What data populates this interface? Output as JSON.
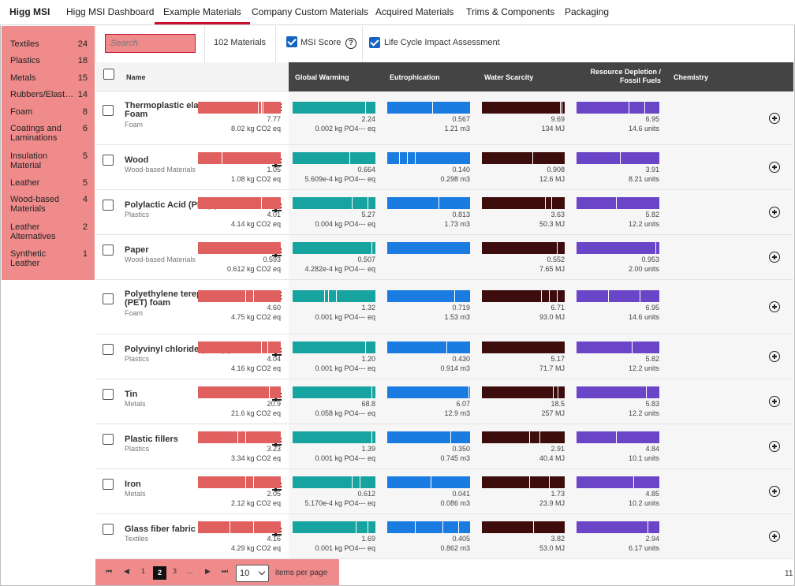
{
  "nav": {
    "tabs": [
      {
        "label": "Higg MSI",
        "bold": true
      },
      {
        "label": "Higg MSI Dashboard"
      },
      {
        "label": "Example Materials",
        "active": true
      },
      {
        "label": "Company Custom Materials"
      },
      {
        "label": "Acquired Materials"
      },
      {
        "label": "Trims & Components"
      },
      {
        "label": "Packaging"
      }
    ]
  },
  "sidebar": {
    "items": [
      {
        "label": "Textiles",
        "count": "24"
      },
      {
        "label": "Plastics",
        "count": "18"
      },
      {
        "label": "Metals",
        "count": "15"
      },
      {
        "label": "Rubbers/Elastomers",
        "count": "14"
      },
      {
        "label": "Foam",
        "count": "8"
      },
      {
        "label": "Coatings and Laminations",
        "count": "6"
      },
      {
        "label": "Insulation Material",
        "count": "5"
      },
      {
        "label": "Leather",
        "count": "5"
      },
      {
        "label": "Wood-based Materials",
        "count": "4"
      },
      {
        "label": "Leather Alternatives",
        "count": "2"
      },
      {
        "label": "Synthetic Leather",
        "count": "1"
      }
    ]
  },
  "toolbar": {
    "search_placeholder": "Search",
    "materials_count": "102 Materials",
    "msi_score_label": "MSI Score",
    "msi_score_checked": true,
    "lcia_label": "Life Cycle Impact Assessment",
    "lcia_checked": true,
    "help_glyph": "?"
  },
  "table": {
    "name_header": "Name",
    "columns": [
      {
        "label": "Global Warming",
        "color": "#e06060"
      },
      {
        "label": "Eutrophication",
        "color": "#17a3a0"
      },
      {
        "label": "Water Scarcity",
        "color": "#1a7be0"
      },
      {
        "label": "Resource Depletion / Fossil Fuels",
        "color": "#3d0d0d"
      },
      {
        "label": "Chemistry",
        "color": "#6a45c8"
      }
    ],
    "rows": [
      {
        "name": "Thermoplastic elastomer (TPE) Foam",
        "category": "Foam",
        "cells": [
          {
            "score": "7.77",
            "lca": "8.02 kg CO2 eq"
          },
          {
            "score": "2.24",
            "lca": "0.002 kg PO4--- eq"
          },
          {
            "score": "0.567",
            "lca": "1.21 m3"
          },
          {
            "score": "9.69",
            "lca": "134 MJ"
          },
          {
            "score": "6.95",
            "lca": "14.6 units"
          }
        ]
      },
      {
        "name": "Wood",
        "category": "Wood-based Materials",
        "cells": [
          {
            "score": "1.05",
            "lca": "1.08 kg CO2 eq"
          },
          {
            "score": "0.664",
            "lca": "5.609e-4 kg PO4--- eq"
          },
          {
            "score": "0.140",
            "lca": "0.298 m3"
          },
          {
            "score": "0.908",
            "lca": "12.6 MJ"
          },
          {
            "score": "3.91",
            "lca": "8.21 units"
          }
        ]
      },
      {
        "name": "Polylactic Acid (PLA) plastic",
        "category": "Plastics",
        "cells": [
          {
            "score": "4.01",
            "lca": "4.14 kg CO2 eq"
          },
          {
            "score": "5.27",
            "lca": "0.004 kg PO4--- eq"
          },
          {
            "score": "0.813",
            "lca": "1.73 m3"
          },
          {
            "score": "3.63",
            "lca": "50.3 MJ"
          },
          {
            "score": "5.82",
            "lca": "12.2 units"
          }
        ]
      },
      {
        "name": "Paper",
        "category": "Wood-based Materials",
        "cells": [
          {
            "score": "0.593",
            "lca": "0.612 kg CO2 eq"
          },
          {
            "score": "0.507",
            "lca": "4.282e-4 kg PO4--- eq"
          },
          {
            "score": "",
            "lca": ""
          },
          {
            "score": "0.552",
            "lca": "7.65 MJ"
          },
          {
            "score": "0.953",
            "lca": "2.00 units"
          }
        ]
      },
      {
        "name": "Polyethylene terephthalate (PET) foam",
        "category": "Foam",
        "cells": [
          {
            "score": "4.60",
            "lca": "4.75 kg CO2 eq"
          },
          {
            "score": "1.32",
            "lca": "0.001 kg PO4--- eq"
          },
          {
            "score": "0.719",
            "lca": "1.53 m3"
          },
          {
            "score": "6.71",
            "lca": "93.0 MJ"
          },
          {
            "score": "6.95",
            "lca": "14.6 units"
          }
        ]
      },
      {
        "name": "Polyvinyl chloride (PVC) plastic",
        "category": "Plastics",
        "cells": [
          {
            "score": "4.04",
            "lca": "4.16 kg CO2 eq"
          },
          {
            "score": "1.20",
            "lca": "0.001 kg PO4--- eq"
          },
          {
            "score": "0.430",
            "lca": "0.914 m3"
          },
          {
            "score": "5.17",
            "lca": "71.7 MJ"
          },
          {
            "score": "5.82",
            "lca": "12.2 units"
          }
        ]
      },
      {
        "name": "Tin",
        "category": "Metals",
        "cells": [
          {
            "score": "20.9",
            "lca": "21.6 kg CO2 eq"
          },
          {
            "score": "68.8",
            "lca": "0.058 kg PO4--- eq"
          },
          {
            "score": "6.07",
            "lca": "12.9 m3"
          },
          {
            "score": "18.5",
            "lca": "257 MJ"
          },
          {
            "score": "5.83",
            "lca": "12.2 units"
          }
        ]
      },
      {
        "name": "Plastic fillers",
        "category": "Plastics",
        "cells": [
          {
            "score": "3.23",
            "lca": "3.34 kg CO2 eq"
          },
          {
            "score": "1.39",
            "lca": "0.001 kg PO4--- eq"
          },
          {
            "score": "0.350",
            "lca": "0.745 m3"
          },
          {
            "score": "2.91",
            "lca": "40.4 MJ"
          },
          {
            "score": "4.84",
            "lca": "10.1 units"
          }
        ]
      },
      {
        "name": "Iron",
        "category": "Metals",
        "cells": [
          {
            "score": "2.05",
            "lca": "2.12 kg CO2 eq"
          },
          {
            "score": "0.612",
            "lca": "5.170e-4 kg PO4--- eq"
          },
          {
            "score": "0.041",
            "lca": "0.086 m3"
          },
          {
            "score": "1.73",
            "lca": "23.9 MJ"
          },
          {
            "score": "4.85",
            "lca": "10.2 units"
          }
        ]
      },
      {
        "name": "Glass fiber fabric",
        "category": "Textiles",
        "cells": [
          {
            "score": "4.16",
            "lca": "4.29 kg CO2 eq"
          },
          {
            "score": "1.69",
            "lca": "0.001 kg PO4--- eq"
          },
          {
            "score": "0.405",
            "lca": "0.862 m3"
          },
          {
            "score": "3.82",
            "lca": "53.0 MJ"
          },
          {
            "score": "2.94",
            "lca": "6.17 units"
          }
        ]
      }
    ]
  },
  "pagination": {
    "first_glyph": "⏮",
    "prev_glyph": "◀",
    "pages": [
      "1",
      "2",
      "3",
      "..."
    ],
    "current": "2",
    "next_glyph": "▶",
    "last_glyph": "⏭",
    "per_page": "10",
    "per_page_label": "items per page",
    "range_text": "11"
  }
}
